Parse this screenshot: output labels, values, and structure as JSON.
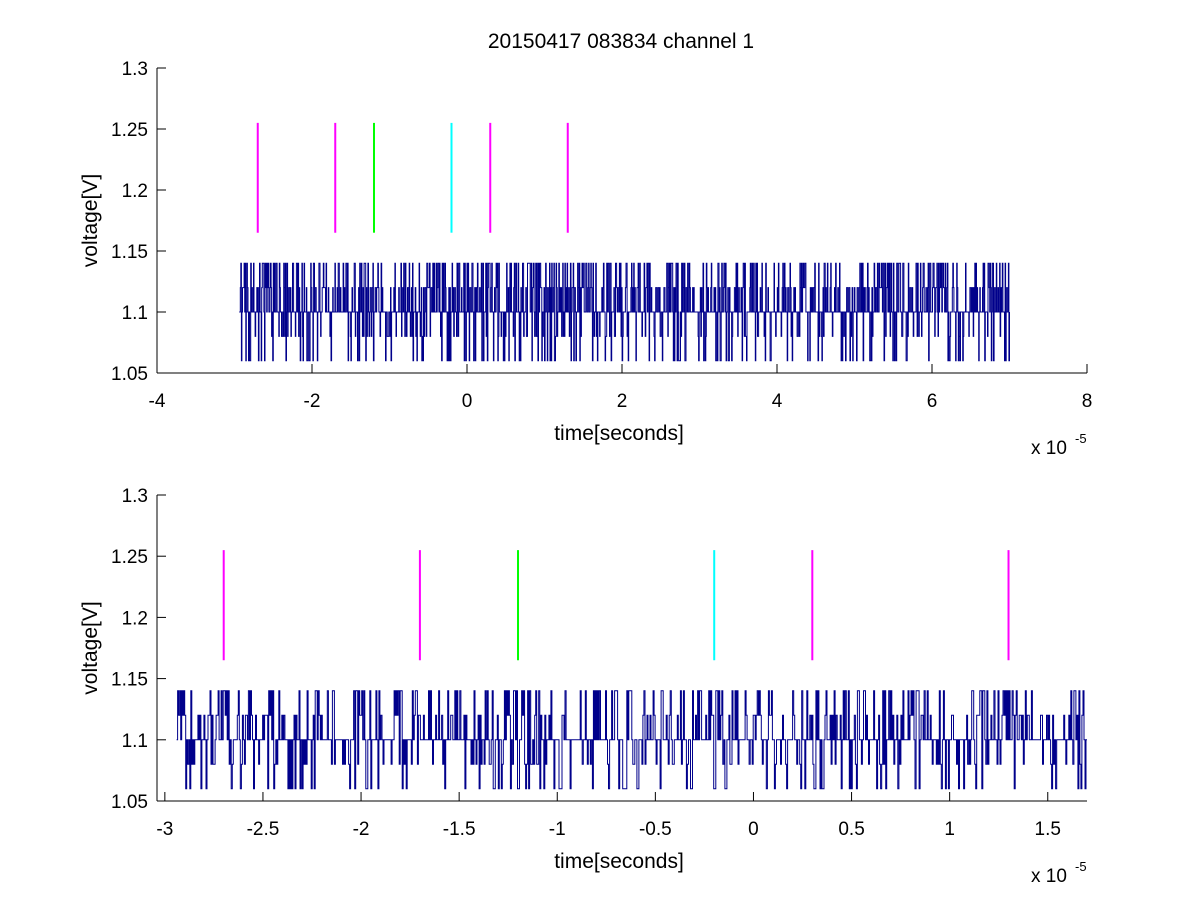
{
  "figure": {
    "title": "20150417 083834 channel 1"
  },
  "chart_data": [
    {
      "type": "line",
      "title": "20150417 083834 channel 1",
      "xlabel": "time[seconds]",
      "ylabel": "voltage[V]",
      "x_multiplier_label": "x 10",
      "x_multiplier_exponent": "-5",
      "xlim": [
        -4,
        8
      ],
      "ylim": [
        1.05,
        1.3
      ],
      "xticks": [
        -4,
        -2,
        0,
        2,
        4,
        6,
        8
      ],
      "xtick_labels": [
        "-4",
        "-2",
        "0",
        "2",
        "4",
        "6",
        "8"
      ],
      "yticks": [
        1.05,
        1.1,
        1.15,
        1.2,
        1.25,
        1.3
      ],
      "ytick_labels": [
        "1.05",
        "1.1",
        "1.15",
        "1.2",
        "1.25",
        "1.3"
      ],
      "grid": false,
      "signal": {
        "color": "#00008b",
        "x_start": -2.94,
        "x_end": 7.0,
        "levels": [
          1.06,
          1.08,
          1.1,
          1.12,
          1.14
        ],
        "baseline": 1.1
      },
      "markers": [
        {
          "x": -2.7,
          "y_range": [
            1.165,
            1.255
          ],
          "color": "#ff00ff"
        },
        {
          "x": -1.7,
          "y_range": [
            1.165,
            1.255
          ],
          "color": "#ff00ff"
        },
        {
          "x": -1.2,
          "y_range": [
            1.165,
            1.255
          ],
          "color": "#00ff00"
        },
        {
          "x": -0.2,
          "y_range": [
            1.165,
            1.255
          ],
          "color": "#00ffff"
        },
        {
          "x": 0.3,
          "y_range": [
            1.165,
            1.255
          ],
          "color": "#ff00ff"
        },
        {
          "x": 1.3,
          "y_range": [
            1.165,
            1.255
          ],
          "color": "#ff00ff"
        }
      ]
    },
    {
      "type": "line",
      "xlabel": "time[seconds]",
      "ylabel": "voltage[V]",
      "x_multiplier_label": "x 10",
      "x_multiplier_exponent": "-5",
      "xlim": [
        -3.04,
        1.7
      ],
      "ylim": [
        1.05,
        1.3
      ],
      "xticks": [
        -3,
        -2.5,
        -2,
        -1.5,
        -1,
        -0.5,
        0,
        0.5,
        1,
        1.5
      ],
      "xtick_labels": [
        "-3",
        "-2.5",
        "-2",
        "-1.5",
        "-1",
        "-0.5",
        "0",
        "0.5",
        "1",
        "1.5"
      ],
      "yticks": [
        1.05,
        1.1,
        1.15,
        1.2,
        1.25,
        1.3
      ],
      "ytick_labels": [
        "1.05",
        "1.1",
        "1.15",
        "1.2",
        "1.25",
        "1.3"
      ],
      "grid": false,
      "signal": {
        "color": "#00008b",
        "x_start": -2.94,
        "x_end": 1.7,
        "levels": [
          1.06,
          1.08,
          1.1,
          1.12,
          1.14
        ],
        "baseline": 1.1
      },
      "markers": [
        {
          "x": -2.7,
          "y_range": [
            1.165,
            1.255
          ],
          "color": "#ff00ff"
        },
        {
          "x": -1.7,
          "y_range": [
            1.165,
            1.255
          ],
          "color": "#ff00ff"
        },
        {
          "x": -1.2,
          "y_range": [
            1.165,
            1.255
          ],
          "color": "#00ff00"
        },
        {
          "x": -0.2,
          "y_range": [
            1.165,
            1.255
          ],
          "color": "#00ffff"
        },
        {
          "x": 0.3,
          "y_range": [
            1.165,
            1.255
          ],
          "color": "#ff00ff"
        },
        {
          "x": 1.3,
          "y_range": [
            1.165,
            1.255
          ],
          "color": "#ff00ff"
        }
      ]
    }
  ]
}
